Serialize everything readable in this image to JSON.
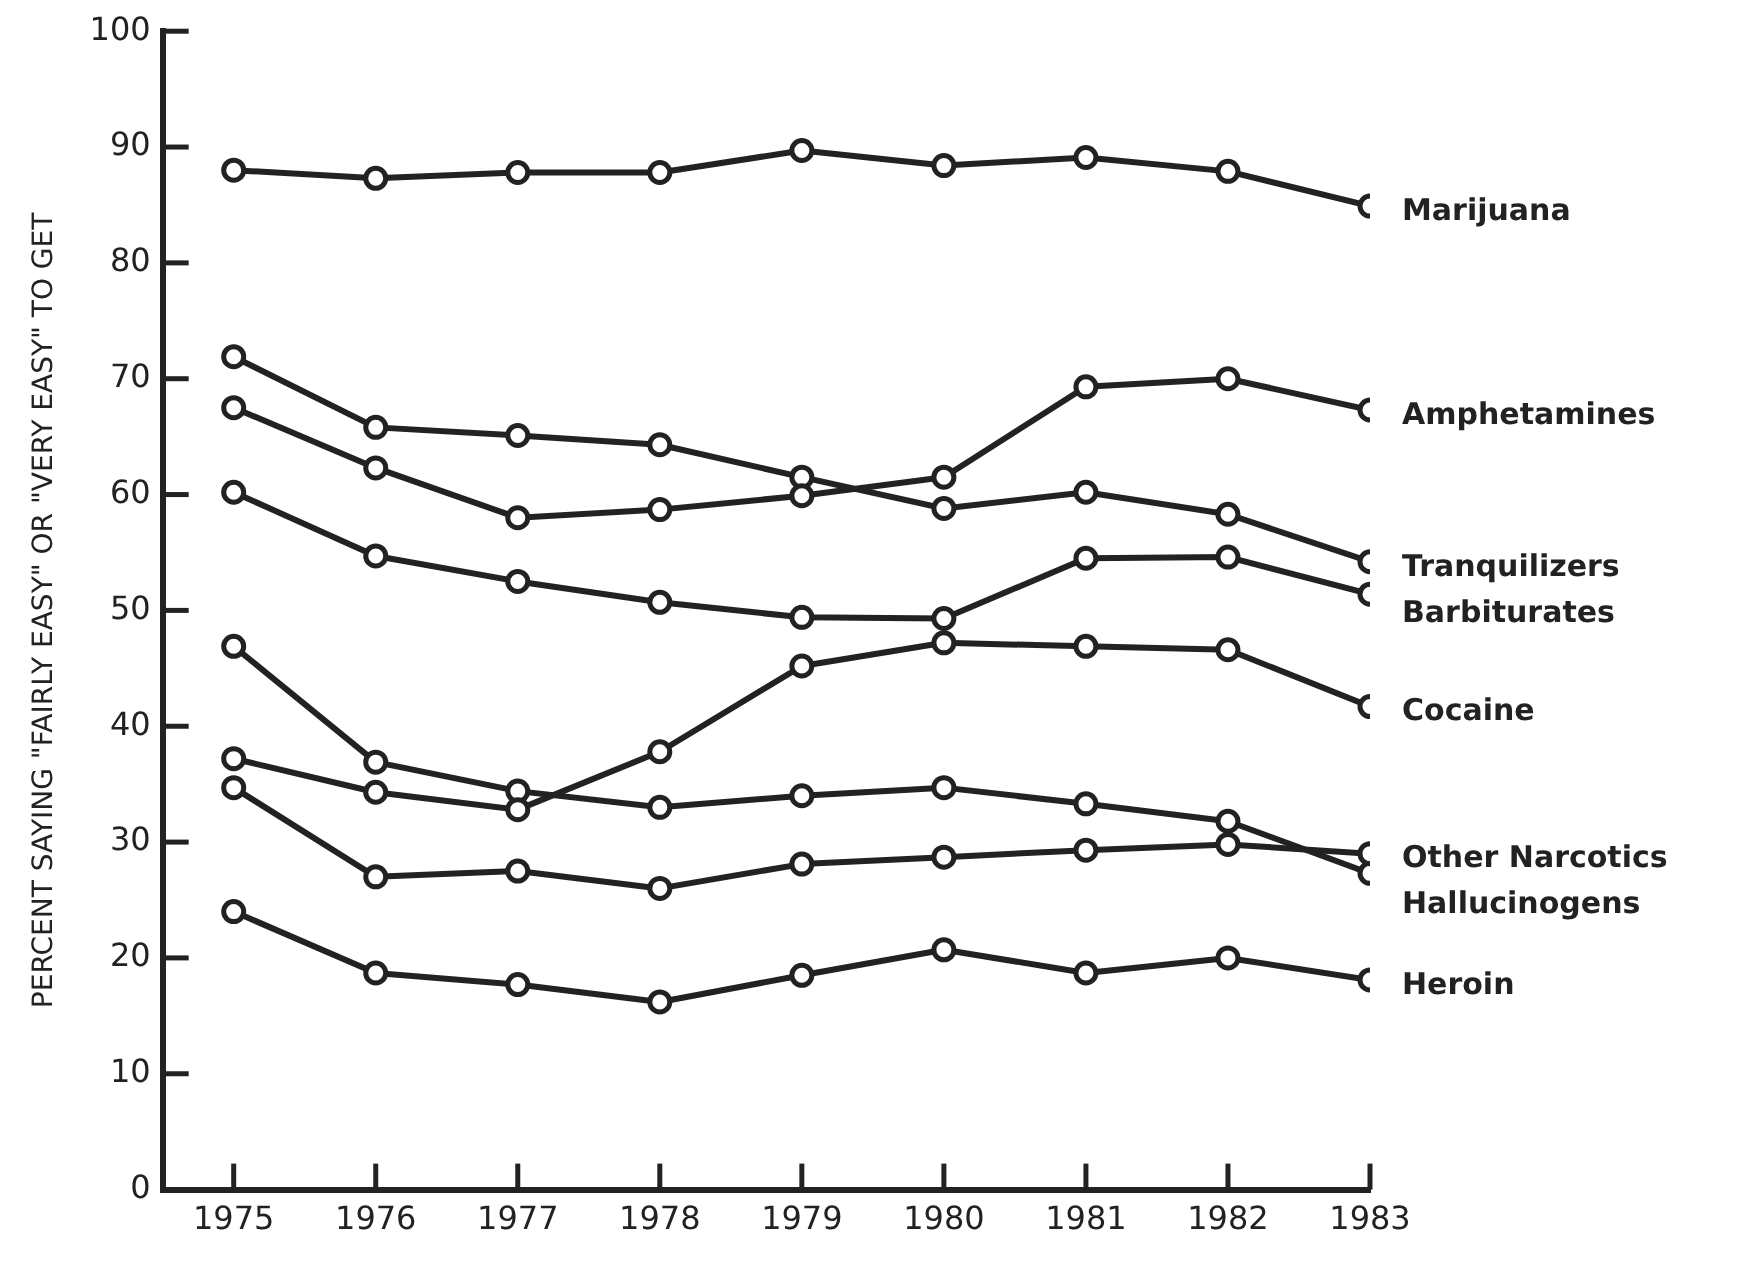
{
  "chart_data": {
    "type": "line",
    "ylabel": "PERCENT SAYING \"FAIRLY EASY\" OR \"VERY EASY\" TO GET",
    "x": [
      1975,
      1976,
      1977,
      1978,
      1979,
      1980,
      1981,
      1982,
      1983
    ],
    "xlim": [
      1974.5,
      1983
    ],
    "xticks": [
      1975,
      1976,
      1977,
      1978,
      1979,
      1980,
      1981,
      1982,
      1983
    ],
    "ylim": [
      0,
      100
    ],
    "yticks": [
      0,
      10,
      20,
      30,
      40,
      50,
      60,
      70,
      80,
      90,
      100
    ],
    "marker": "circle",
    "line_style": "solid",
    "series": [
      {
        "name": "Marijuana",
        "color": "#222222",
        "values": [
          88.0,
          87.3,
          87.8,
          87.8,
          89.7,
          88.4,
          89.1,
          87.9,
          84.9
        ]
      },
      {
        "name": "Amphetamines",
        "color": "#222222",
        "values": [
          67.5,
          62.3,
          58.0,
          58.7,
          59.9,
          61.5,
          69.3,
          70.0,
          67.3
        ]
      },
      {
        "name": "Tranquilizers",
        "color": "#222222",
        "values": [
          71.9,
          65.8,
          65.1,
          64.3,
          61.5,
          58.8,
          60.2,
          58.3,
          54.2
        ]
      },
      {
        "name": "Barbiturates",
        "color": "#222222",
        "values": [
          60.2,
          54.7,
          52.5,
          50.7,
          49.4,
          49.3,
          54.5,
          54.6,
          51.4
        ]
      },
      {
        "name": "Cocaine",
        "color": "#222222",
        "values": [
          37.2,
          34.3,
          32.8,
          37.8,
          45.2,
          47.2,
          46.9,
          46.6,
          41.7
        ]
      },
      {
        "name": "Other Narcotics",
        "color": "#222222",
        "values": [
          34.7,
          27.0,
          27.5,
          26.0,
          28.1,
          28.7,
          29.3,
          29.8,
          29.0
        ]
      },
      {
        "name": "Hallucinogens",
        "color": "#222222",
        "values": [
          46.9,
          36.9,
          34.4,
          33.0,
          34.0,
          34.7,
          33.3,
          31.8,
          27.3
        ]
      },
      {
        "name": "Heroin",
        "color": "#222222",
        "values": [
          24.0,
          18.7,
          17.7,
          16.2,
          18.5,
          20.7,
          18.7,
          20.0,
          18.1
        ]
      }
    ]
  }
}
